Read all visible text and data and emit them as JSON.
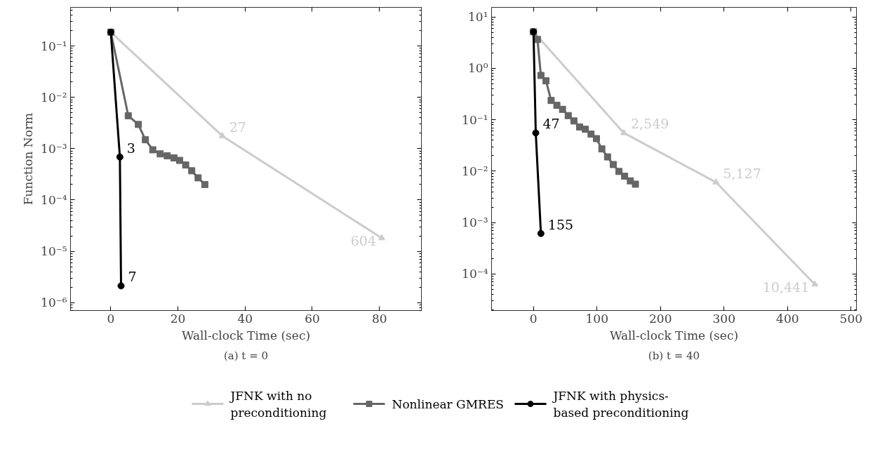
{
  "chart_data": [
    {
      "type": "line",
      "title": "(a) t = 0",
      "xlabel": "Wall-clock Time (sec)",
      "ylabel": "Function Norm",
      "log": "y",
      "grid": false,
      "legend": "bottom",
      "line_style": "solid",
      "xlim": [
        -12,
        92.5
      ],
      "xticks": [
        0,
        20,
        40,
        60,
        80
      ],
      "ylim": [
        7e-07,
        0.566
      ],
      "yticks": [
        {
          "value": 1e-06,
          "label": "10⁻⁶"
        },
        {
          "value": 1e-05,
          "label": "10⁻⁵"
        },
        {
          "value": 0.0001,
          "label": "10⁻⁴"
        },
        {
          "value": 0.001,
          "label": "10⁻³"
        },
        {
          "value": 0.01,
          "label": "10⁻²"
        },
        {
          "value": 0.1,
          "label": "10⁻¹"
        }
      ],
      "series": [
        {
          "name": "JFNK with no preconditioning",
          "color": "#cccccc",
          "marker": "triangle",
          "x": [
            0,
            33.2,
            80.7
          ],
          "values": [
            0.186,
            0.00177,
            1.81e-05
          ]
        },
        {
          "name": "Nonlinear GMRES",
          "color": "#666666",
          "marker": "square",
          "x": [
            0,
            5.2,
            8.2,
            10.3,
            12.5,
            14.7,
            16.8,
            18.8,
            20.5,
            22.3,
            24.1,
            26.0,
            28.0
          ],
          "values": [
            0.186,
            0.00437,
            0.00296,
            0.00149,
            0.00095,
            0.00079,
            0.000724,
            0.00066,
            0.00059,
            0.00048,
            0.00037,
            0.00027,
            0.0002
          ]
        },
        {
          "name": "JFNK with physics-based preconditioning",
          "color": "#000000",
          "marker": "circle",
          "x": [
            0,
            2.7,
            3.05
          ],
          "values": [
            0.186,
            0.000687,
            2.12e-06
          ]
        }
      ],
      "annotations": [
        {
          "text": "27",
          "x": 33.2,
          "y": 0.00177
        },
        {
          "text": "604",
          "x": 80.7,
          "y": 1.81e-05
        },
        {
          "text": "3",
          "x": 2.7,
          "y": 0.000687
        },
        {
          "text": "7",
          "x": 3.05,
          "y": 2.12e-06
        }
      ]
    },
    {
      "type": "line",
      "title": "(b) t = 40",
      "xlabel": "Wall-clock Time (sec)",
      "log": "y",
      "grid": false,
      "line_style": "solid",
      "xlim": [
        -66,
        508.5
      ],
      "xticks": [
        0,
        100,
        200,
        300,
        400,
        500
      ],
      "ylim": [
        1.95e-05,
        15.4
      ],
      "yticks": [
        {
          "value": 0.0001,
          "label": "10⁻⁴"
        },
        {
          "value": 0.001,
          "label": "10⁻³"
        },
        {
          "value": 0.01,
          "label": "10⁻²"
        },
        {
          "value": 0.1,
          "label": "10⁻¹"
        },
        {
          "value": 1,
          "label": "10⁰"
        },
        {
          "value": 10,
          "label": "10¹"
        }
      ],
      "series": [
        {
          "color": "#cccccc",
          "marker": "triangle",
          "x": [
            0,
            142.2,
            287.4,
            443
          ],
          "values": [
            5.15,
            0.0556,
            0.0061,
            6.3e-05
          ]
        },
        {
          "color": "#666666",
          "marker": "square",
          "x": [
            0,
            6.3,
            11.7,
            19.7,
            27.8,
            36.8,
            45.7,
            54.7,
            63.7,
            72.6,
            81.6,
            90.6,
            99.1,
            107.6,
            116.6,
            125.6,
            134.5,
            143.5,
            152.5,
            160.5
          ],
          "values": [
            5.15,
            3.65,
            0.73,
            0.574,
            0.238,
            0.192,
            0.16,
            0.121,
            0.095,
            0.0727,
            0.0656,
            0.0528,
            0.0431,
            0.0272,
            0.019,
            0.0135,
            0.0099,
            0.008,
            0.0065,
            0.0056
          ]
        },
        {
          "color": "#000000",
          "marker": "circle",
          "x": [
            0,
            3.6,
            11.7
          ],
          "values": [
            5.15,
            0.0556,
            0.000615
          ]
        }
      ],
      "annotations": [
        {
          "text": "2,549",
          "x": 142.2,
          "y": 0.0556
        },
        {
          "text": "5,127",
          "x": 287.4,
          "y": 0.0061
        },
        {
          "text": "10,441",
          "x": 443,
          "y": 6.3e-05
        },
        {
          "text": "47",
          "x": 3.6,
          "y": 0.0556
        },
        {
          "text": "155",
          "x": 11.7,
          "y": 0.000615
        }
      ]
    }
  ]
}
